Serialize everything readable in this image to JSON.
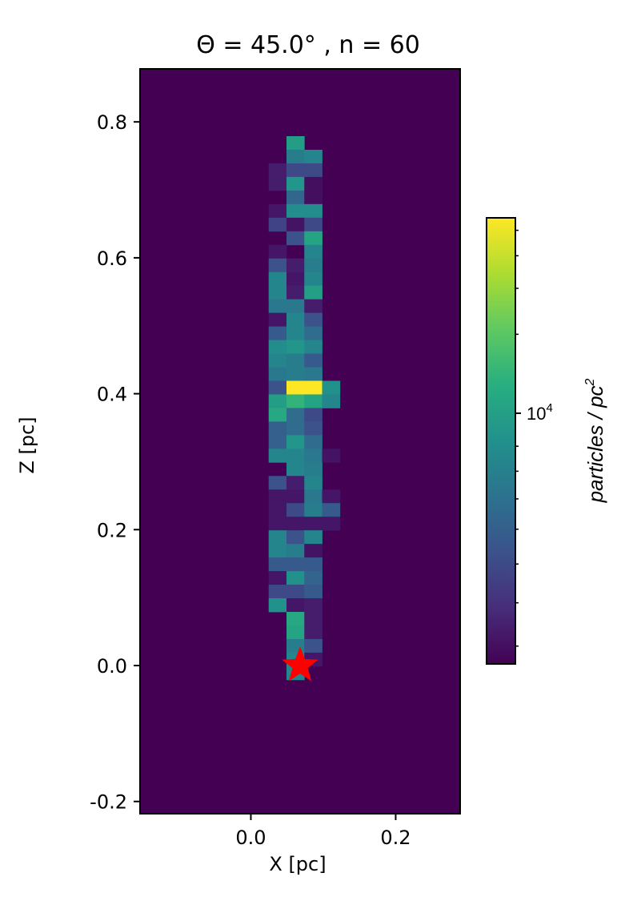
{
  "chart_data": {
    "type": "heatmap",
    "title": "Θ = 45.0° , n = 60",
    "xlabel": "X [pc]",
    "ylabel": "Z [pc]",
    "xlim": [
      -0.153,
      0.289
    ],
    "ylim": [
      -0.218,
      0.878
    ],
    "xticks": [
      {
        "value": 0.0,
        "label": "0.0"
      },
      {
        "value": 0.2,
        "label": "0.2"
      }
    ],
    "yticks": [
      {
        "value": -0.2,
        "label": "-0.2"
      },
      {
        "value": 0.0,
        "label": "0.0"
      },
      {
        "value": 0.2,
        "label": "0.2"
      },
      {
        "value": 0.4,
        "label": "0.4"
      },
      {
        "value": 0.6,
        "label": "0.6"
      },
      {
        "value": 0.8,
        "label": "0.8"
      }
    ],
    "grid": false,
    "background_level": 0.0,
    "bin_x_start": 0.0246,
    "bin_width": 0.0246,
    "bin_z_top": 0.779,
    "bin_height": 0.02,
    "columns": 4,
    "rows": [
      [
        null,
        0.55,
        null,
        null
      ],
      [
        null,
        0.42,
        0.45,
        null
      ],
      [
        0.08,
        0.22,
        0.22,
        null
      ],
      [
        0.08,
        0.52,
        0.04,
        null
      ],
      [
        null,
        0.33,
        0.04,
        null
      ],
      [
        0.06,
        0.48,
        0.48,
        null
      ],
      [
        0.2,
        0.05,
        0.22,
        null
      ],
      [
        null,
        0.25,
        0.58,
        null
      ],
      [
        0.06,
        null,
        0.45,
        null
      ],
      [
        0.25,
        0.08,
        0.42,
        null
      ],
      [
        0.45,
        0.06,
        0.45,
        null
      ],
      [
        0.45,
        0.08,
        0.56,
        null
      ],
      [
        0.4,
        0.4,
        0.08,
        null
      ],
      [
        0.06,
        0.45,
        0.25,
        null
      ],
      [
        0.28,
        0.45,
        0.35,
        null
      ],
      [
        0.48,
        0.52,
        0.45,
        null
      ],
      [
        0.45,
        0.42,
        0.28,
        null
      ],
      [
        0.4,
        0.42,
        0.4,
        null
      ],
      [
        0.25,
        1.0,
        1.0,
        0.5
      ],
      [
        0.55,
        0.65,
        0.58,
        0.45
      ],
      [
        0.6,
        0.35,
        0.22,
        null
      ],
      [
        0.3,
        0.35,
        0.25,
        null
      ],
      [
        0.3,
        0.52,
        0.35,
        null
      ],
      [
        0.45,
        0.45,
        0.4,
        0.05
      ],
      [
        null,
        0.45,
        0.42,
        null
      ],
      [
        0.25,
        0.08,
        0.45,
        null
      ],
      [
        0.06,
        0.06,
        0.4,
        0.06
      ],
      [
        0.06,
        0.22,
        0.42,
        0.28
      ],
      [
        0.06,
        0.06,
        0.06,
        0.06
      ],
      [
        0.45,
        0.25,
        0.45,
        null
      ],
      [
        0.45,
        0.42,
        0.05,
        null
      ],
      [
        0.28,
        0.28,
        0.28,
        null
      ],
      [
        0.06,
        0.5,
        0.32,
        null
      ],
      [
        0.22,
        0.22,
        0.28,
        null
      ],
      [
        0.5,
        0.06,
        0.08,
        null
      ],
      [
        null,
        0.6,
        0.08,
        null
      ],
      [
        null,
        0.58,
        0.08,
        null
      ],
      [
        null,
        0.42,
        0.25,
        null
      ],
      [
        null,
        0.45,
        0.06,
        null
      ],
      [
        null,
        0.45,
        null,
        null
      ]
    ],
    "marker": {
      "x": 0.068,
      "z": 0.0,
      "symbol": "star",
      "color": "#ff0000"
    },
    "colorbar": {
      "label": "particles / pc",
      "label_power": "2",
      "scale": "log",
      "tick_base": "10",
      "tick_exp": "4",
      "tick_value_frac": 0.562,
      "minor_ticks_frac": [
        0.04,
        0.137,
        0.224,
        0.302,
        0.37,
        0.432,
        0.488,
        0.739,
        0.842,
        0.915,
        0.972
      ]
    }
  }
}
